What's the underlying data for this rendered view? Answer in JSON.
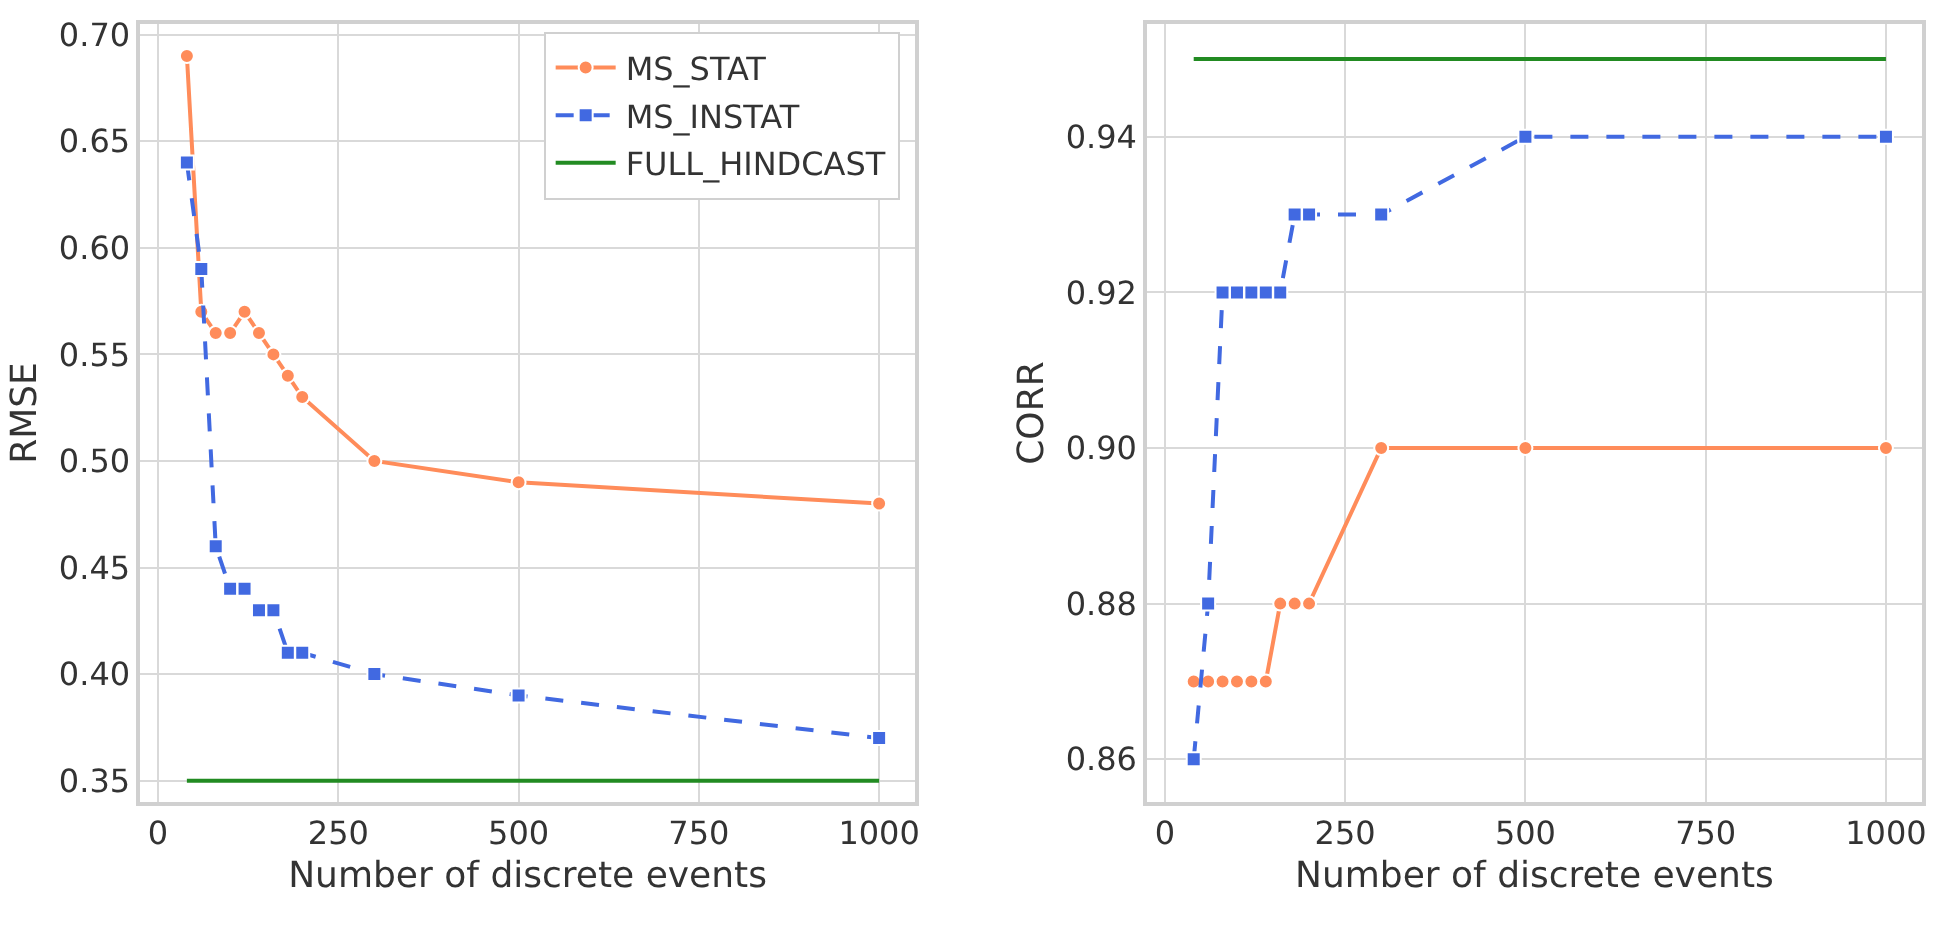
{
  "chart_data": [
    {
      "type": "line",
      "xlabel": "Number of discrete events",
      "ylabel": "RMSE",
      "x": [
        40,
        60,
        80,
        100,
        120,
        140,
        160,
        180,
        200,
        300,
        500,
        1000
      ],
      "series": [
        {
          "name": "MS_STAT",
          "color": "#ff8c5a",
          "marker": "circle",
          "line_style": "solid",
          "values": [
            0.69,
            0.57,
            0.56,
            0.56,
            0.57,
            0.56,
            0.55,
            0.54,
            0.53,
            0.5,
            0.49,
            0.48
          ]
        },
        {
          "name": "MS_INSTAT",
          "color": "#4169e1",
          "marker": "square",
          "line_style": "dashed",
          "values": [
            0.64,
            0.59,
            0.46,
            0.44,
            0.44,
            0.43,
            0.43,
            0.41,
            0.41,
            0.4,
            0.39,
            0.37
          ]
        },
        {
          "name": "FULL_HINDCAST",
          "color": "#228b22",
          "marker": "none",
          "line_style": "solid",
          "values": [
            0.35,
            0.35,
            0.35,
            0.35,
            0.35,
            0.35,
            0.35,
            0.35,
            0.35,
            0.35,
            0.35,
            0.35
          ]
        }
      ],
      "xlim": [
        -25,
        1050
      ],
      "xticks": [
        0,
        250,
        500,
        750,
        1000
      ],
      "ylim": [
        0.34,
        0.705
      ],
      "yticks": [
        {
          "value": 0.35,
          "label": "0.35"
        },
        {
          "value": 0.4,
          "label": "0.40"
        },
        {
          "value": 0.45,
          "label": "0.45"
        },
        {
          "value": 0.5,
          "label": "0.50"
        },
        {
          "value": 0.55,
          "label": "0.55"
        },
        {
          "value": 0.6,
          "label": "0.60"
        },
        {
          "value": 0.65,
          "label": "0.65"
        },
        {
          "value": 0.7,
          "label": "0.70"
        }
      ],
      "grid": true,
      "legend": "top right"
    },
    {
      "type": "line",
      "xlabel": "Number of discrete events",
      "ylabel": "CORR",
      "x": [
        40,
        60,
        80,
        100,
        120,
        140,
        160,
        180,
        200,
        300,
        500,
        1000
      ],
      "series": [
        {
          "color": "#ff8c5a",
          "marker": "circle",
          "line_style": "solid",
          "values": [
            0.87,
            0.87,
            0.87,
            0.87,
            0.87,
            0.87,
            0.88,
            0.88,
            0.88,
            0.9,
            0.9,
            0.9
          ]
        },
        {
          "color": "#4169e1",
          "marker": "square",
          "line_style": "dashed",
          "values": [
            0.86,
            0.88,
            0.92,
            0.92,
            0.92,
            0.92,
            0.92,
            0.93,
            0.93,
            0.93,
            0.94,
            0.94
          ]
        },
        {
          "color": "#228b22",
          "marker": "none",
          "line_style": "solid",
          "values": [
            0.95,
            0.95,
            0.95,
            0.95,
            0.95,
            0.95,
            0.95,
            0.95,
            0.95,
            0.95,
            0.95,
            0.95
          ]
        }
      ],
      "xlim": [
        -25,
        1050
      ],
      "xticks": [
        0,
        250,
        500,
        750,
        1000
      ],
      "ylim": [
        0.8545,
        0.9545
      ],
      "yticks": [
        {
          "value": 0.86,
          "label": "0.86"
        },
        {
          "value": 0.88,
          "label": "0.88"
        },
        {
          "value": 0.9,
          "label": "0.90"
        },
        {
          "value": 0.92,
          "label": "0.92"
        },
        {
          "value": 0.94,
          "label": "0.94"
        }
      ],
      "grid": true,
      "legend": false
    }
  ]
}
